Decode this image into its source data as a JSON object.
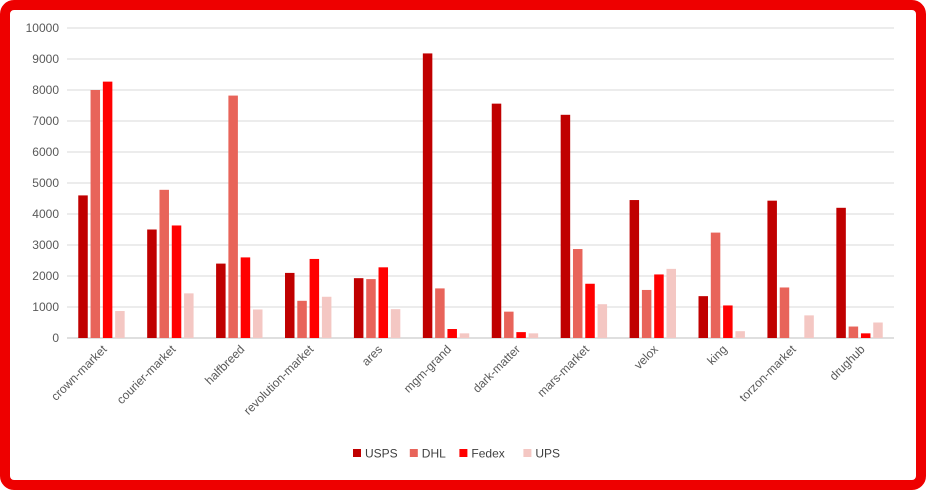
{
  "chart_data": {
    "type": "bar",
    "categories": [
      "crown-market",
      "courier-market",
      "halfbreed",
      "revolution-market",
      "ares",
      "mgm-grand",
      "dark-matter",
      "mars-market",
      "velox",
      "king",
      "torzon-market",
      "drughub"
    ],
    "series": [
      {
        "name": "USPS",
        "color": "#c00000",
        "values": [
          4600,
          3500,
          2400,
          2100,
          1930,
          9180,
          7560,
          7200,
          4450,
          1350,
          4430,
          4200
        ]
      },
      {
        "name": "DHL",
        "color": "#e8645a",
        "values": [
          8000,
          4780,
          7820,
          1200,
          1900,
          1600,
          850,
          2870,
          1550,
          3400,
          1630,
          370
        ]
      },
      {
        "name": "Fedex",
        "color": "#ff0000",
        "values": [
          8270,
          3630,
          2600,
          2550,
          2280,
          290,
          190,
          1750,
          2050,
          1050,
          0,
          150
        ]
      },
      {
        "name": "UPS",
        "color": "#f4c7c3",
        "values": [
          870,
          1440,
          920,
          1330,
          930,
          150,
          150,
          1090,
          2230,
          220,
          730,
          500
        ]
      }
    ],
    "yticks": [
      "0",
      "1000",
      "2000",
      "3000",
      "4000",
      "5000",
      "6000",
      "7000",
      "8000",
      "9000",
      "10000"
    ],
    "ylim": [
      0,
      10000
    ],
    "grid": true,
    "legend_position": "bottom"
  }
}
